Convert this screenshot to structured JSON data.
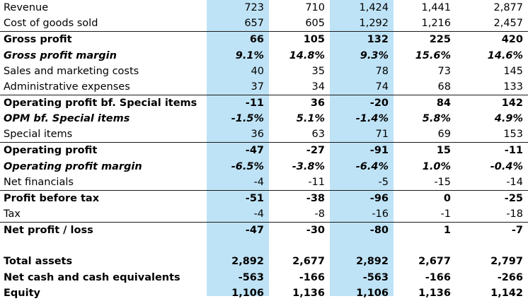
{
  "highlight_color": "#bfe3f6",
  "rows": [
    {
      "label": "Revenue",
      "values": [
        "723",
        "710",
        "1,424",
        "1,441",
        "2,877"
      ],
      "style": "normal"
    },
    {
      "label": "Cost of goods sold",
      "values": [
        "657",
        "605",
        "1,292",
        "1,216",
        "2,457"
      ],
      "style": "normal"
    },
    {
      "label": "Gross profit",
      "values": [
        "66",
        "105",
        "132",
        "225",
        "420"
      ],
      "style": "bold"
    },
    {
      "label": "Gross profit margin",
      "values": [
        "9.1%",
        "14.8%",
        "9.3%",
        "15.6%",
        "14.6%"
      ],
      "style": "italic"
    },
    {
      "label": "Sales and marketing costs",
      "values": [
        "40",
        "35",
        "78",
        "73",
        "145"
      ],
      "style": "normal"
    },
    {
      "label": "Administrative expenses",
      "values": [
        "37",
        "34",
        "74",
        "68",
        "133"
      ],
      "style": "normal"
    },
    {
      "label": "Operating profit bf. Special items",
      "values": [
        "-11",
        "36",
        "-20",
        "84",
        "142"
      ],
      "style": "bold"
    },
    {
      "label": "OPM bf. Special items",
      "values": [
        "-1.5%",
        "5.1%",
        "-1.4%",
        "5.8%",
        "4.9%"
      ],
      "style": "italic"
    },
    {
      "label": "Special items",
      "values": [
        "36",
        "63",
        "71",
        "69",
        "153"
      ],
      "style": "normal"
    },
    {
      "label": "Operating profit",
      "values": [
        "-47",
        "-27",
        "-91",
        "15",
        "-11"
      ],
      "style": "bold"
    },
    {
      "label": "Operating profit margin",
      "values": [
        "-6.5%",
        "-3.8%",
        "-6.4%",
        "1.0%",
        "-0.4%"
      ],
      "style": "italic"
    },
    {
      "label": "Net financials",
      "values": [
        "-4",
        "-11",
        "-5",
        "-15",
        "-14"
      ],
      "style": "normal"
    },
    {
      "label": "Profit before tax",
      "values": [
        "-51",
        "-38",
        "-96",
        "0",
        "-25"
      ],
      "style": "bold"
    },
    {
      "label": "Tax",
      "values": [
        "-4",
        "-8",
        "-16",
        "-1",
        "-18"
      ],
      "style": "normal"
    },
    {
      "label": "Net profit / loss",
      "values": [
        "-47",
        "-30",
        "-80",
        "1",
        "-7"
      ],
      "style": "bold"
    },
    {
      "label": "",
      "values": [
        "",
        "",
        "",
        "",
        ""
      ],
      "style": "blank"
    },
    {
      "label": "Total assets",
      "values": [
        "2,892",
        "2,677",
        "2,892",
        "2,677",
        "2,797"
      ],
      "style": "bold"
    },
    {
      "label": "Net cash and cash equivalents",
      "values": [
        "-563",
        "-166",
        "-563",
        "-166",
        "-266"
      ],
      "style": "bold"
    },
    {
      "label": "Equity",
      "values": [
        "1,106",
        "1,136",
        "1,106",
        "1,136",
        "1,142"
      ],
      "style": "bold"
    }
  ]
}
